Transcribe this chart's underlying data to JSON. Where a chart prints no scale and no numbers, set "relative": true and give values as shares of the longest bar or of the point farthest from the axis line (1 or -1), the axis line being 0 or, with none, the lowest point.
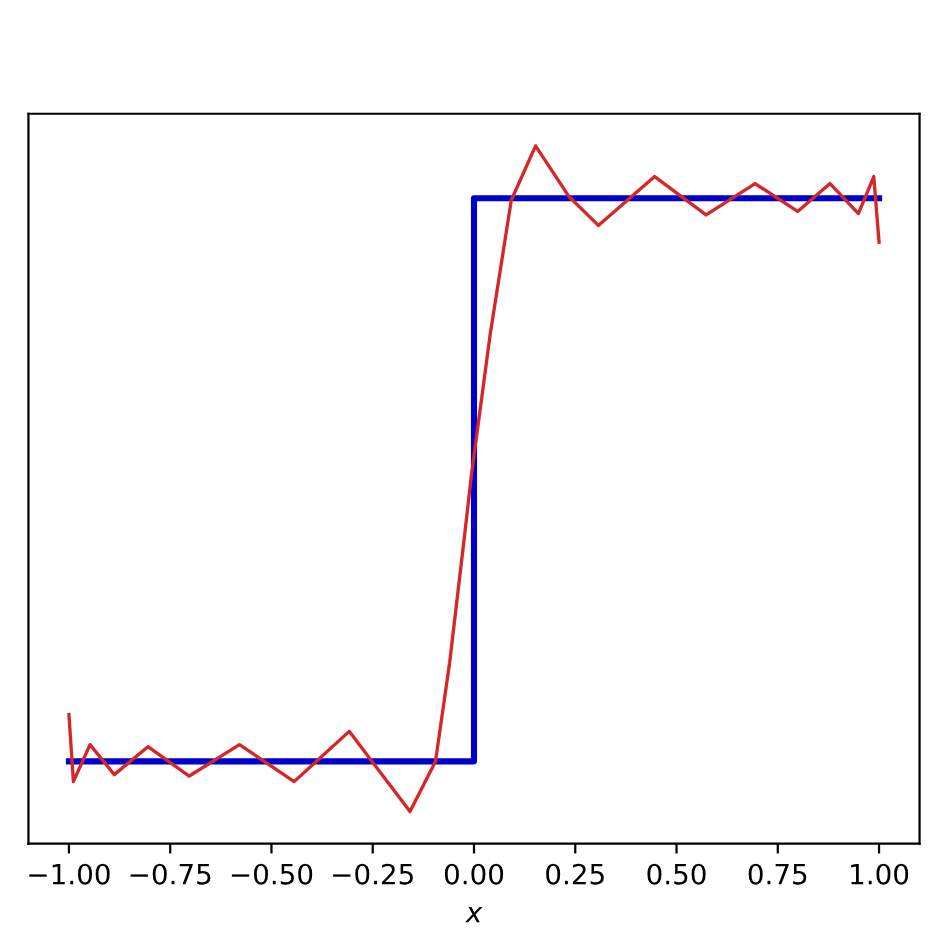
{
  "chart_data": {
    "type": "line",
    "relative": true,
    "xlabel": "x",
    "xlim": [
      -1.1,
      1.1
    ],
    "xticks": [
      {
        "value": -1,
        "label": "−1.00"
      },
      {
        "value": -0.75,
        "label": "−0.75"
      },
      {
        "value": -0.5,
        "label": "−0.50"
      },
      {
        "value": -0.25,
        "label": "−0.25"
      },
      {
        "value": 0,
        "label": "0.00"
      },
      {
        "value": 0.25,
        "label": "0.25"
      },
      {
        "value": 0.5,
        "label": "0.50"
      },
      {
        "value": 0.75,
        "label": "0.75"
      },
      {
        "value": 1,
        "label": "1.00"
      }
    ],
    "grid": false,
    "legend": false,
    "series": [
      {
        "type": "step",
        "color": "#0000cc",
        "x": [
          -1,
          0,
          1
        ],
        "values": [
          0.118,
          0.925,
          0.925
        ]
      },
      {
        "type": "line",
        "color": "#d62728",
        "x": [
          -1.0,
          -0.989,
          -0.948,
          -0.888,
          -0.805,
          -0.703,
          -0.579,
          -0.444,
          -0.308,
          -0.158,
          -0.095,
          -0.06,
          -0.023,
          -0.006,
          0.04,
          0.092,
          0.152,
          0.235,
          0.307,
          0.446,
          0.573,
          0.694,
          0.799,
          0.879,
          0.949,
          0.987,
          1.0
        ],
        "values": [
          0.185,
          0.089,
          0.142,
          0.099,
          0.139,
          0.097,
          0.142,
          0.089,
          0.161,
          0.046,
          0.118,
          0.26,
          0.443,
          0.53,
          0.73,
          0.922,
          1.0,
          0.927,
          0.886,
          0.956,
          0.901,
          0.946,
          0.906,
          0.946,
          0.903,
          0.956,
          0.862
        ]
      }
    ]
  }
}
